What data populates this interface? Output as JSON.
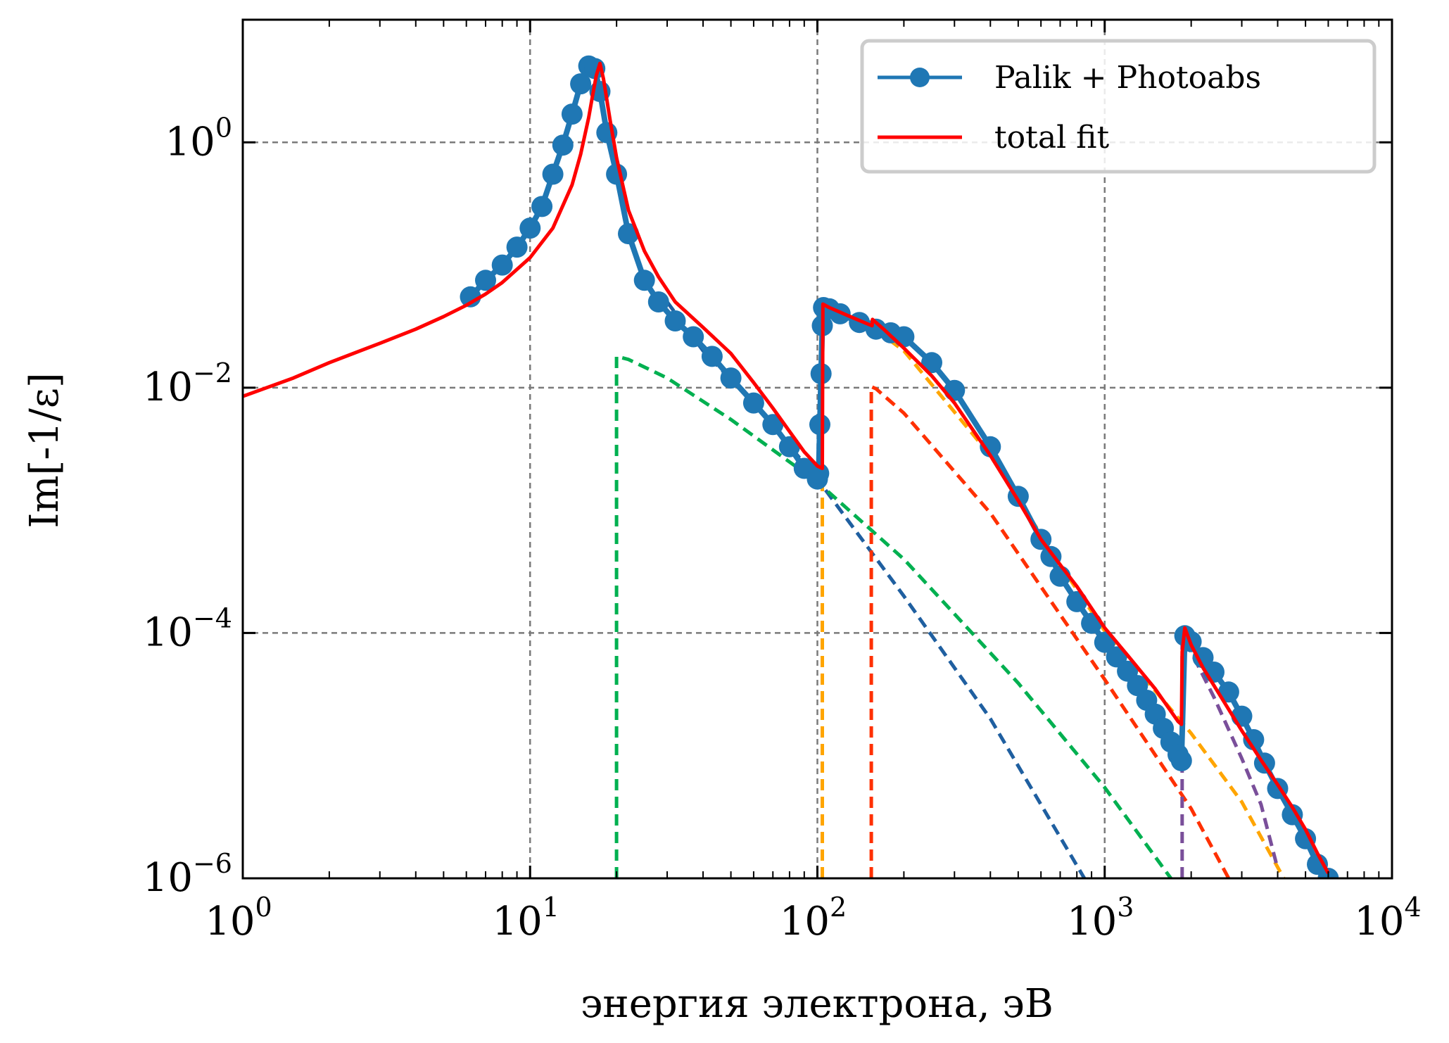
{
  "chart_data": {
    "type": "line",
    "title": "",
    "xlabel": "энергия электрона, эВ",
    "ylabel": "Im[-1/ε]",
    "xscale": "log",
    "yscale": "log",
    "xlim": [
      1,
      10000
    ],
    "ylim": [
      1e-06,
      10
    ],
    "grid": true,
    "legend_position": "top-right",
    "x_ticks": [
      {
        "base": "10",
        "exp": "0"
      },
      {
        "base": "10",
        "exp": "1"
      },
      {
        "base": "10",
        "exp": "2"
      },
      {
        "base": "10",
        "exp": "3"
      },
      {
        "base": "10",
        "exp": "4"
      }
    ],
    "y_ticks": [
      {
        "base": "10",
        "exp": "0",
        "value": 1
      },
      {
        "base": "10",
        "exp": "−2",
        "value": 0.01
      },
      {
        "base": "10",
        "exp": "−4",
        "value": 0.0001
      },
      {
        "base": "10",
        "exp": "−6",
        "value": 1e-06
      }
    ],
    "series": [
      {
        "name": "Palik + Photoabs",
        "color": "#1f77b4",
        "style": "line-markers",
        "x": [
          6.2,
          7,
          8,
          9,
          10,
          11,
          12,
          13,
          14,
          15,
          16,
          16.8,
          17.5,
          18.5,
          20,
          22,
          25,
          28,
          32,
          37,
          43,
          50,
          60,
          70,
          80,
          90,
          100,
          101,
          102,
          103,
          104,
          105,
          110,
          120,
          140,
          160,
          180,
          200,
          250,
          300,
          400,
          500,
          600,
          650,
          700,
          800,
          900,
          1000,
          1100,
          1200,
          1300,
          1400,
          1500,
          1600,
          1700,
          1800,
          1850,
          1900,
          2000,
          2200,
          2400,
          2700,
          3000,
          3300,
          3600,
          4000,
          4500,
          5000,
          5500,
          6000
        ],
        "y": [
          0.055,
          0.075,
          0.1,
          0.14,
          0.2,
          0.3,
          0.55,
          0.95,
          1.7,
          3.0,
          4.2,
          4.0,
          2.6,
          1.2,
          0.55,
          0.18,
          0.075,
          0.05,
          0.035,
          0.026,
          0.018,
          0.012,
          0.0075,
          0.005,
          0.0033,
          0.0022,
          0.0018,
          0.002,
          0.005,
          0.013,
          0.032,
          0.045,
          0.044,
          0.04,
          0.034,
          0.03,
          0.028,
          0.026,
          0.016,
          0.0095,
          0.0033,
          0.0013,
          0.00058,
          0.00042,
          0.00029,
          0.00018,
          0.00012,
          8.39e-05,
          6.38e-05,
          4.88e-05,
          3.73e-05,
          2.83e-05,
          2.18e-05,
          1.67e-05,
          1.29e-05,
          1.02e-05,
          9.1e-06,
          9.5e-05,
          8.5e-05,
          6.3e-05,
          4.8e-05,
          3.3e-05,
          2.1e-05,
          1.35e-05,
          8.7e-06,
          5.4e-06,
          3.3e-06,
          2.1e-06,
          1.3e-06,
          1e-06
        ]
      },
      {
        "name": "total fit",
        "color": "#ff0000",
        "style": "line",
        "x": [
          1,
          1.5,
          2,
          3,
          4,
          5,
          6,
          7,
          8,
          10,
          12,
          14,
          15,
          16,
          16.5,
          17,
          17.5,
          18,
          19,
          20,
          22,
          25,
          28,
          32,
          40,
          50,
          60,
          70,
          80,
          90,
          100,
          104,
          104.5,
          110,
          130,
          150,
          155,
          155.5,
          170,
          200,
          250,
          300,
          400,
          500,
          600,
          700,
          800,
          1000,
          1200,
          1500,
          1800,
          1850,
          1860,
          1900,
          2000,
          2200,
          2500,
          3000,
          3500,
          4000,
          4500,
          5000,
          5500,
          6000
        ],
        "y": [
          0.0085,
          0.012,
          0.016,
          0.023,
          0.03,
          0.038,
          0.047,
          0.058,
          0.072,
          0.115,
          0.2,
          0.45,
          0.8,
          1.6,
          2.4,
          3.5,
          4.4,
          3.3,
          1.5,
          0.75,
          0.28,
          0.13,
          0.08,
          0.05,
          0.031,
          0.019,
          0.011,
          0.0068,
          0.0044,
          0.003,
          0.0023,
          0.0022,
          0.048,
          0.045,
          0.038,
          0.033,
          0.032,
          0.036,
          0.03,
          0.021,
          0.0125,
          0.0075,
          0.0028,
          0.0012,
          0.00058,
          0.00036,
          0.00024,
          0.00011,
          6.6e-05,
          3.5e-05,
          1.9e-05,
          1.8e-05,
          7e-05,
          0.00011,
          8e-05,
          5.2e-05,
          3.2e-05,
          1.6e-05,
          9.2e-06,
          5.8e-06,
          3.8e-06,
          2.5e-06,
          1.6e-06,
          1.1e-06
        ]
      }
    ],
    "components": [
      {
        "color": "#1f5fa0",
        "x": [
          30,
          40,
          60,
          100,
          200,
          400,
          850
        ],
        "y": [
          0.05,
          0.02,
          0.0075,
          0.0018,
          0.0002,
          2e-05,
          1e-06
        ]
      },
      {
        "color": "#00b050",
        "x": [
          20,
          20,
          22,
          30,
          50,
          100,
          200,
          500,
          1000,
          1700
        ],
        "y": [
          1e-06,
          0.018,
          0.017,
          0.012,
          0.0055,
          0.0017,
          0.0004,
          3.9e-05,
          5.5e-06,
          1e-06
        ]
      },
      {
        "color": "#ffa500",
        "x": [
          104,
          104,
          110,
          150,
          200,
          400,
          700,
          1000,
          2000,
          3000,
          4200
        ],
        "y": [
          1e-06,
          0.048,
          0.045,
          0.033,
          0.02,
          0.0028,
          0.00036,
          0.000104,
          1.52e-05,
          4.2e-06,
          1e-06
        ]
      },
      {
        "color": "#ff3000",
        "x": [
          154,
          154,
          160,
          200,
          400,
          1000,
          2000,
          2700
        ],
        "y": [
          1e-06,
          0.0102,
          0.0098,
          0.0062,
          0.00095,
          4.17e-05,
          3.7e-06,
          1e-06
        ]
      },
      {
        "color": "#7a4f9a",
        "x": [
          1860,
          1860,
          2000,
          2400,
          3000,
          3500,
          4000
        ],
        "y": [
          1e-06,
          9.2e-05,
          7e-05,
          3e-05,
          9.5e-06,
          4e-06,
          1.2e-06
        ]
      }
    ]
  },
  "legend": {
    "entries": [
      {
        "label": "Palik + Photoabs",
        "color": "#1f77b4",
        "marker": true
      },
      {
        "label": "total fit",
        "color": "#ff0000",
        "marker": false
      }
    ]
  }
}
